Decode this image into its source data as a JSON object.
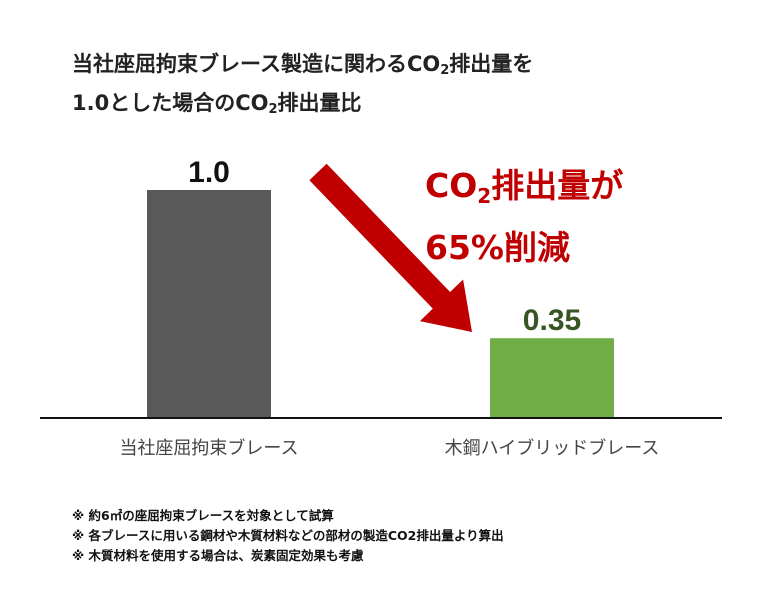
{
  "title": {
    "line1_pre": "当社座屈拘束ブレース製造に関わるCO",
    "line1_sub": "2",
    "line1_post": "排出量を",
    "line2_pre": "1.0とした場合のCO",
    "line2_sub": "2",
    "line2_post": "排出量比"
  },
  "callout": {
    "line1_pre": "CO",
    "line1_sub": "2",
    "line1_post": "排出量が",
    "line2": "65%削減",
    "color": "#c00000"
  },
  "notes": [
    "※ 約6㎡の座屈拘束ブレースを対象として試算",
    "※ 各ブレースに用いる鋼材や木質材料などの部材の製造CO2排出量より算出",
    "※ 木質材料を使用する場合は、炭素固定効果も考慮"
  ],
  "chart_data": {
    "type": "bar",
    "categories": [
      "当社座屈拘束ブレース",
      "木鋼ハイブリッドブレース"
    ],
    "values": [
      1.0,
      0.35
    ],
    "data_labels": [
      "1.0",
      "0.35"
    ],
    "colors": [
      "#595959",
      "#70ad47"
    ],
    "label_colors": [
      "#111111",
      "#375623"
    ],
    "ylim": [
      0,
      1.0
    ],
    "grid": false,
    "legend": "none",
    "arrow_color": "#c00000"
  }
}
